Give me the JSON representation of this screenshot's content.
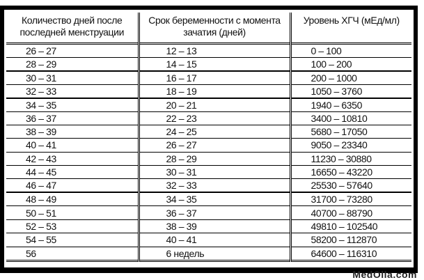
{
  "headers": [
    "Количество дней после последней менструации",
    "Срок беременности с момента зачатия (дней)",
    "Уровень ХГЧ (мЕд/мл)"
  ],
  "rows": [
    [
      "26 – 27",
      "12 – 13",
      "0 – 100"
    ],
    [
      "28 – 29",
      "14 – 15",
      "100 – 200"
    ],
    [
      "30 – 31",
      "16 – 17",
      "200 – 1000"
    ],
    [
      "32 – 33",
      "18 – 19",
      "1050 – 3760"
    ],
    [
      "34 – 35",
      "20 – 21",
      "1940 – 6350"
    ],
    [
      "36 – 37",
      "22 – 23",
      "3400 – 10810"
    ],
    [
      "38 – 39",
      "24 – 25",
      "5680 – 17050"
    ],
    [
      "40 – 41",
      "26 – 27",
      "9050 – 23340"
    ],
    [
      "42 – 43",
      "28 – 29",
      "11230 – 30880"
    ],
    [
      "44 – 45",
      "30 – 31",
      "16650 – 43220"
    ],
    [
      "46 – 47",
      "32 – 33",
      "25530 – 57640"
    ],
    [
      "48 – 49",
      "34 – 35",
      "31700 – 73280"
    ],
    [
      "50 – 51",
      "36 – 37",
      "40700 – 88790"
    ],
    [
      "52 – 53",
      "38 – 39",
      "49810 – 102540"
    ],
    [
      "54 – 55",
      "40 – 41",
      "58200 – 112870"
    ],
    [
      "56",
      "6 недель",
      "64600 – 116310"
    ]
  ],
  "watermark": "MedOlla.com"
}
